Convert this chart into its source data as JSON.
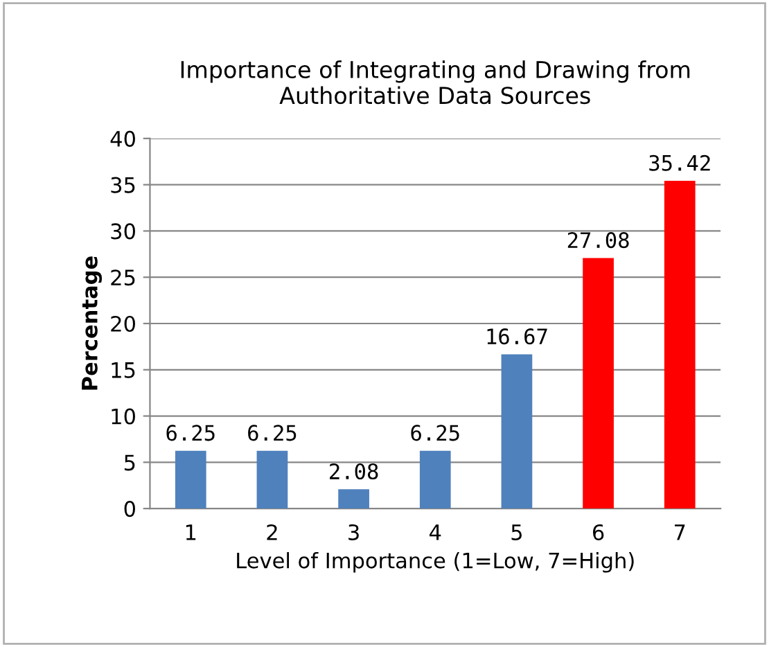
{
  "chart_data": {
    "type": "bar",
    "title": "Importance of Integrating and Drawing from\nAuthoritative Data Sources",
    "xlabel": "Level of Importance (1=Low, 7=High)",
    "ylabel": "Percentage",
    "categories": [
      "1",
      "2",
      "3",
      "4",
      "5",
      "6",
      "7"
    ],
    "values": [
      6.25,
      6.25,
      2.08,
      6.25,
      16.67,
      27.08,
      35.42
    ],
    "colors": [
      "#4f81bd",
      "#4f81bd",
      "#4f81bd",
      "#4f81bd",
      "#4f81bd",
      "#ff0000",
      "#ff0000"
    ],
    "ylim": [
      0,
      40
    ],
    "yticks": [
      0,
      5,
      10,
      15,
      20,
      25,
      30,
      35,
      40
    ],
    "grid": "y",
    "data_labels": true
  }
}
